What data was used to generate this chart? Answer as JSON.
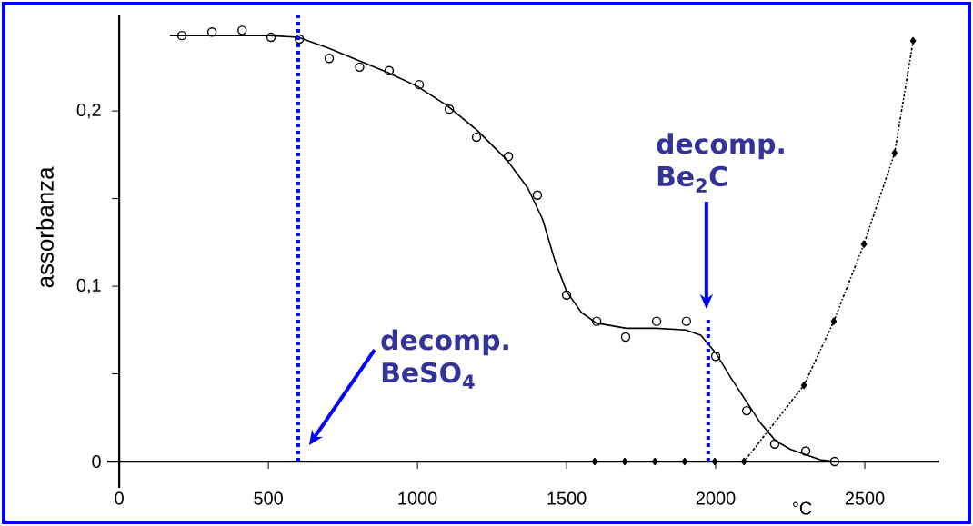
{
  "chart_data": {
    "type": "scatter",
    "ylabel": "assorbanza",
    "xlabel": "°C",
    "xlim": [
      -40,
      2750
    ],
    "ylim": [
      -0.015,
      0.255
    ],
    "xticks": [
      0,
      500,
      1000,
      1500,
      2000,
      2500
    ],
    "yticks": [
      {
        "value": 0,
        "label": "0"
      },
      {
        "value": 0.05,
        "label": null
      },
      {
        "value": 0.1,
        "label": "0,1"
      },
      {
        "value": 0.15,
        "label": null
      },
      {
        "value": 0.2,
        "label": "0,2"
      }
    ],
    "series": [
      {
        "marker": "circle",
        "color": "#000000",
        "x": [
          210,
          311,
          412,
          509,
          604,
          704,
          806,
          905,
          1006,
          1107,
          1198,
          1305,
          1402,
          1500,
          1601,
          1698,
          1802,
          1902,
          2000,
          2104,
          2198,
          2302,
          2399
        ],
        "values": [
          0.243,
          0.245,
          0.246,
          0.242,
          0.241,
          0.23,
          0.225,
          0.223,
          0.215,
          0.201,
          0.185,
          0.174,
          0.152,
          0.095,
          0.08,
          0.071,
          0.08,
          0.08,
          0.06,
          0.029,
          0.01,
          0.006,
          0.0
        ]
      },
      {
        "type": "line",
        "marker": "none",
        "line_style": "solid",
        "color": "#000000",
        "x": [
          170,
          300,
          500,
          600,
          700,
          800,
          900,
          1000,
          1100,
          1200,
          1300,
          1370,
          1420,
          1460,
          1500,
          1550,
          1600,
          1700,
          1800,
          1900,
          1950,
          2000,
          2050,
          2100,
          2150,
          2200,
          2250,
          2300,
          2350,
          2400,
          2450
        ],
        "values": [
          0.243,
          0.243,
          0.243,
          0.242,
          0.236,
          0.229,
          0.222,
          0.214,
          0.203,
          0.189,
          0.172,
          0.156,
          0.138,
          0.115,
          0.097,
          0.085,
          0.079,
          0.076,
          0.076,
          0.075,
          0.072,
          0.062,
          0.048,
          0.035,
          0.022,
          0.012,
          0.007,
          0.004,
          0.001,
          0.0,
          0.0
        ]
      },
      {
        "type": "line",
        "marker": "diamond",
        "line_style": "dashed",
        "color": "#000000",
        "x": [
          1594,
          1695,
          1796,
          1896,
          1997,
          2095,
          2296,
          2396,
          2497,
          2600,
          2662
        ],
        "values": [
          0.0,
          0.0,
          0.0,
          0.0,
          0.0,
          0.0,
          0.0435,
          0.08,
          0.124,
          0.176,
          0.24
        ]
      }
    ],
    "ref_lines": [
      {
        "axis": "x",
        "value": 600,
        "color": "#0000ff",
        "line_style": "dotted"
      },
      {
        "axis": "x",
        "value": 1975,
        "color": "#0000ff",
        "line_style": "dotted"
      }
    ],
    "annotations": [
      "decomp. BeSO$_{4}$",
      "decomp. Be$_{2}$C"
    ]
  }
}
